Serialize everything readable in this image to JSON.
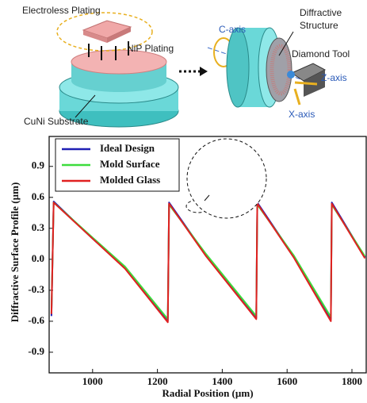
{
  "diagram": {
    "labels": [
      "Electroless Plating",
      "NiP Plating",
      "CuNi Substrate",
      "C-axis",
      "Diffractive",
      "Structure",
      "Diamond Tool",
      "Z-axis",
      "X-axis"
    ]
  },
  "chart_data": {
    "type": "line",
    "xlabel": "Radial Position (µm)",
    "ylabel": "Diffractive Surface  Profile (µm)",
    "x": [
      873,
      880,
      1000,
      1100,
      1232,
      1236,
      1350,
      1505,
      1508,
      1620,
      1735,
      1738,
      1840
    ],
    "series": [
      {
        "name": "Ideal Design",
        "color": "#1f1fb4",
        "values": [
          -0.55,
          0.56,
          0.2,
          -0.08,
          -0.6,
          0.55,
          0.04,
          -0.57,
          0.55,
          0.03,
          -0.58,
          0.55,
          0.02
        ]
      },
      {
        "name": "Mold Surface",
        "color": "#3ddc3d",
        "values": [
          -0.52,
          0.55,
          0.21,
          -0.07,
          -0.58,
          0.53,
          0.05,
          -0.55,
          0.53,
          0.04,
          -0.56,
          0.53,
          0.03
        ]
      },
      {
        "name": "Molded Glass",
        "color": "#e02020",
        "values": [
          -0.53,
          0.55,
          0.2,
          -0.09,
          -0.61,
          0.54,
          0.03,
          -0.58,
          0.54,
          0.02,
          -0.6,
          0.54,
          0.01
        ]
      }
    ],
    "xlim": [
      866,
      1844
    ],
    "ylim": [
      -1.1,
      1.19
    ],
    "xticks": [
      1000,
      1200,
      1400,
      1600,
      1800
    ],
    "yticks": [
      0.9,
      0.6,
      0.3,
      {
        "value": 0,
        "label": "0.0"
      },
      -0.3,
      -0.6,
      -0.9
    ],
    "grid": false,
    "legend": "upper-left"
  }
}
